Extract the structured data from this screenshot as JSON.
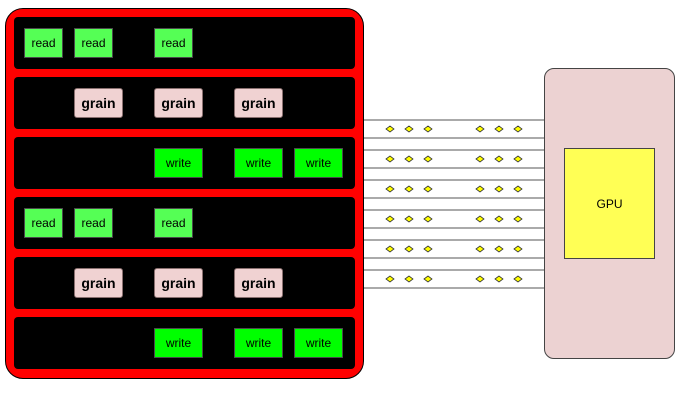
{
  "lanes": [
    {
      "type": "read",
      "labels": [
        "read",
        "read",
        "read"
      ]
    },
    {
      "type": "grain",
      "labels": [
        "grain",
        "grain",
        "grain"
      ]
    },
    {
      "type": "write",
      "labels": [
        "write",
        "write",
        "write"
      ]
    },
    {
      "type": "read",
      "labels": [
        "read",
        "read",
        "read"
      ]
    },
    {
      "type": "grain",
      "labels": [
        "grain",
        "grain",
        "grain"
      ]
    },
    {
      "type": "write",
      "labels": [
        "write",
        "write",
        "write"
      ]
    }
  ],
  "gpu": {
    "label": "GPU"
  },
  "links": {
    "channel_count": 6,
    "packets_per_group": 3,
    "groups_per_channel": 2
  },
  "colors": {
    "frame": "#ff0000",
    "lane": "#000000",
    "read": "#55ff55",
    "write": "#00ff00",
    "grain": "#f0d2d2",
    "gpu_frame": "#ecd2d2",
    "gpu_core": "#ffff55",
    "packet": "#ffff00"
  }
}
